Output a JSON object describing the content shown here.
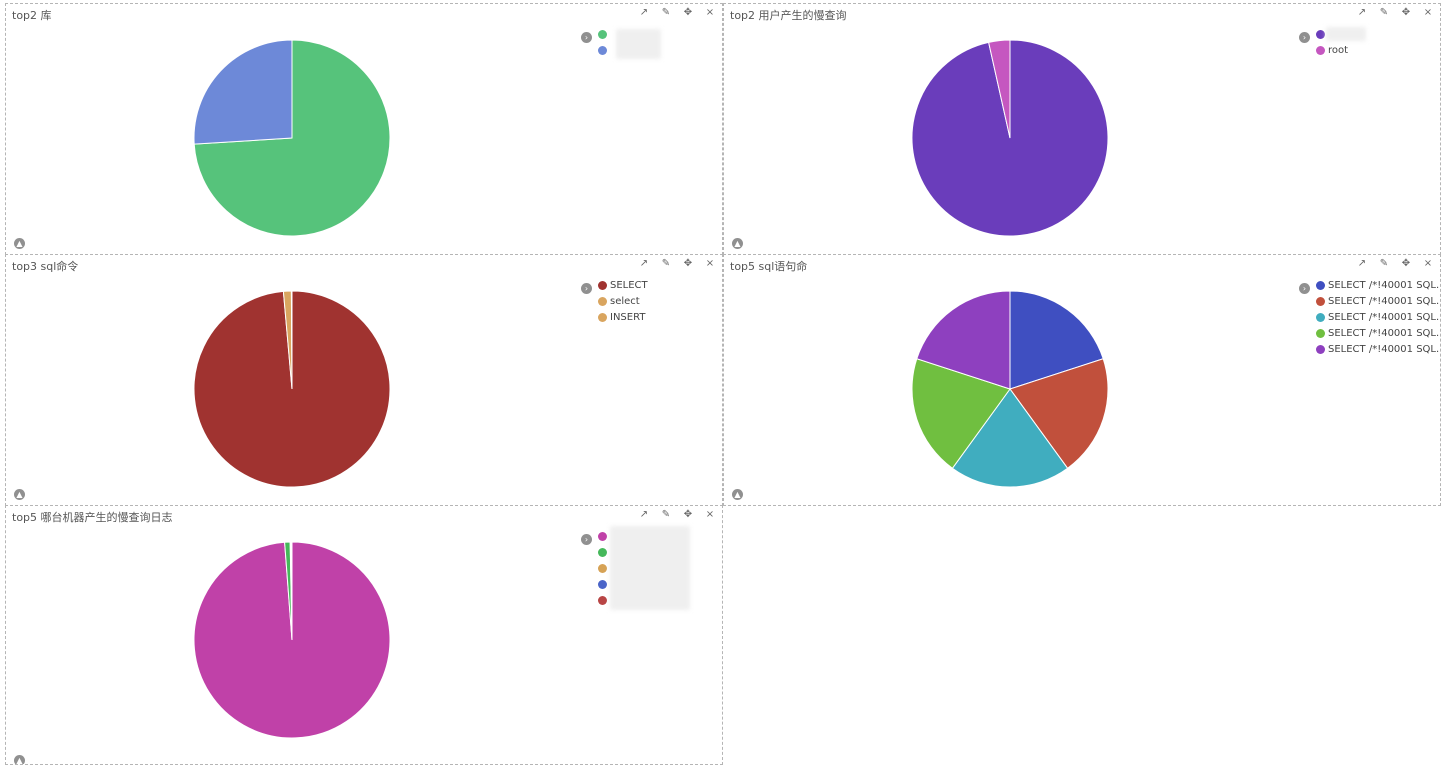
{
  "icons": {
    "expand": "↗",
    "edit": "✎",
    "move": "✥",
    "close": "×",
    "collapse": "▲",
    "legend_toggle": "›"
  },
  "chart_data": [
    {
      "type": "pie",
      "title": "top2 库",
      "slices": [
        {
          "label": "",
          "value": 74,
          "color": "#56c37b"
        },
        {
          "label": "",
          "value": 26,
          "color": "#6d89d8"
        }
      ]
    },
    {
      "type": "pie",
      "title": "top2 用户产生的慢查询",
      "slices": [
        {
          "label": "",
          "value": 96.5,
          "color": "#6a3dbb"
        },
        {
          "label": "root",
          "value": 3.5,
          "color": "#c557c0"
        }
      ]
    },
    {
      "type": "pie",
      "title": "top3 sql命令",
      "slices": [
        {
          "label": "SELECT",
          "value": 98.6,
          "color": "#a03330"
        },
        {
          "label": "select",
          "value": 1.3,
          "color": "#d9a55f"
        },
        {
          "label": "INSERT",
          "value": 0.1,
          "color": "#d9a55f"
        }
      ]
    },
    {
      "type": "pie",
      "title": "top5 sql语句命",
      "slices": [
        {
          "label": "SELECT /*!40001 SQL...",
          "value": 20,
          "color": "#3f4fc1"
        },
        {
          "label": "SELECT /*!40001 SQL...",
          "value": 20,
          "color": "#c1503c"
        },
        {
          "label": "SELECT /*!40001 SQL...",
          "value": 20,
          "color": "#40adbf"
        },
        {
          "label": "SELECT /*!40001 SQL...",
          "value": 20,
          "color": "#70bf40"
        },
        {
          "label": "SELECT /*!40001 SQL...",
          "value": 20,
          "color": "#8e40bf"
        }
      ]
    },
    {
      "type": "pie",
      "title": "top5 哪台机器产生的慢查询日志",
      "slices": [
        {
          "label": "",
          "value": 98.8,
          "color": "#c041a8"
        },
        {
          "label": "",
          "value": 0.9,
          "color": "#45b85a"
        },
        {
          "label": "",
          "value": 0.1,
          "color": "#d6a255"
        },
        {
          "label": "",
          "value": 0.1,
          "color": "#4a64c8"
        },
        {
          "label": "",
          "value": 0.1,
          "color": "#b84545"
        }
      ]
    }
  ]
}
